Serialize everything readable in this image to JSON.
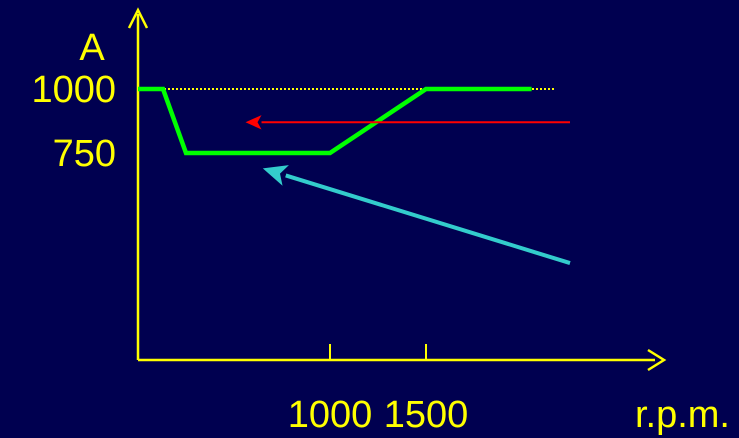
{
  "chart_data": {
    "type": "line",
    "ylabel": "A",
    "xlabel": "r.p.m.",
    "x_ticks": [
      {
        "value": 1000,
        "label": "1000"
      },
      {
        "value": 1500,
        "label": "1500"
      }
    ],
    "y_ticks": [
      {
        "value": 1000,
        "label": "1000"
      },
      {
        "value": 750,
        "label": "750"
      }
    ],
    "reference_line": {
      "y": 1000,
      "style": "dotted",
      "color": "#ffff00"
    },
    "series": [
      {
        "color": "#00ff00",
        "points": [
          [
            0,
            1000
          ],
          [
            130,
            1000
          ],
          [
            250,
            750
          ],
          [
            1000,
            750
          ],
          [
            1500,
            1000
          ],
          [
            2050,
            1000
          ]
        ]
      }
    ],
    "annotations": [
      {
        "type": "arrow",
        "color": "#ff0000",
        "from": [
          2250,
          870
        ],
        "to": [
          560,
          870
        ]
      },
      {
        "type": "arrow",
        "color": "#33cccc",
        "from": [
          2250,
          320
        ],
        "to": [
          650,
          690
        ]
      }
    ],
    "axis_color": "#ffff00",
    "grid": false
  }
}
